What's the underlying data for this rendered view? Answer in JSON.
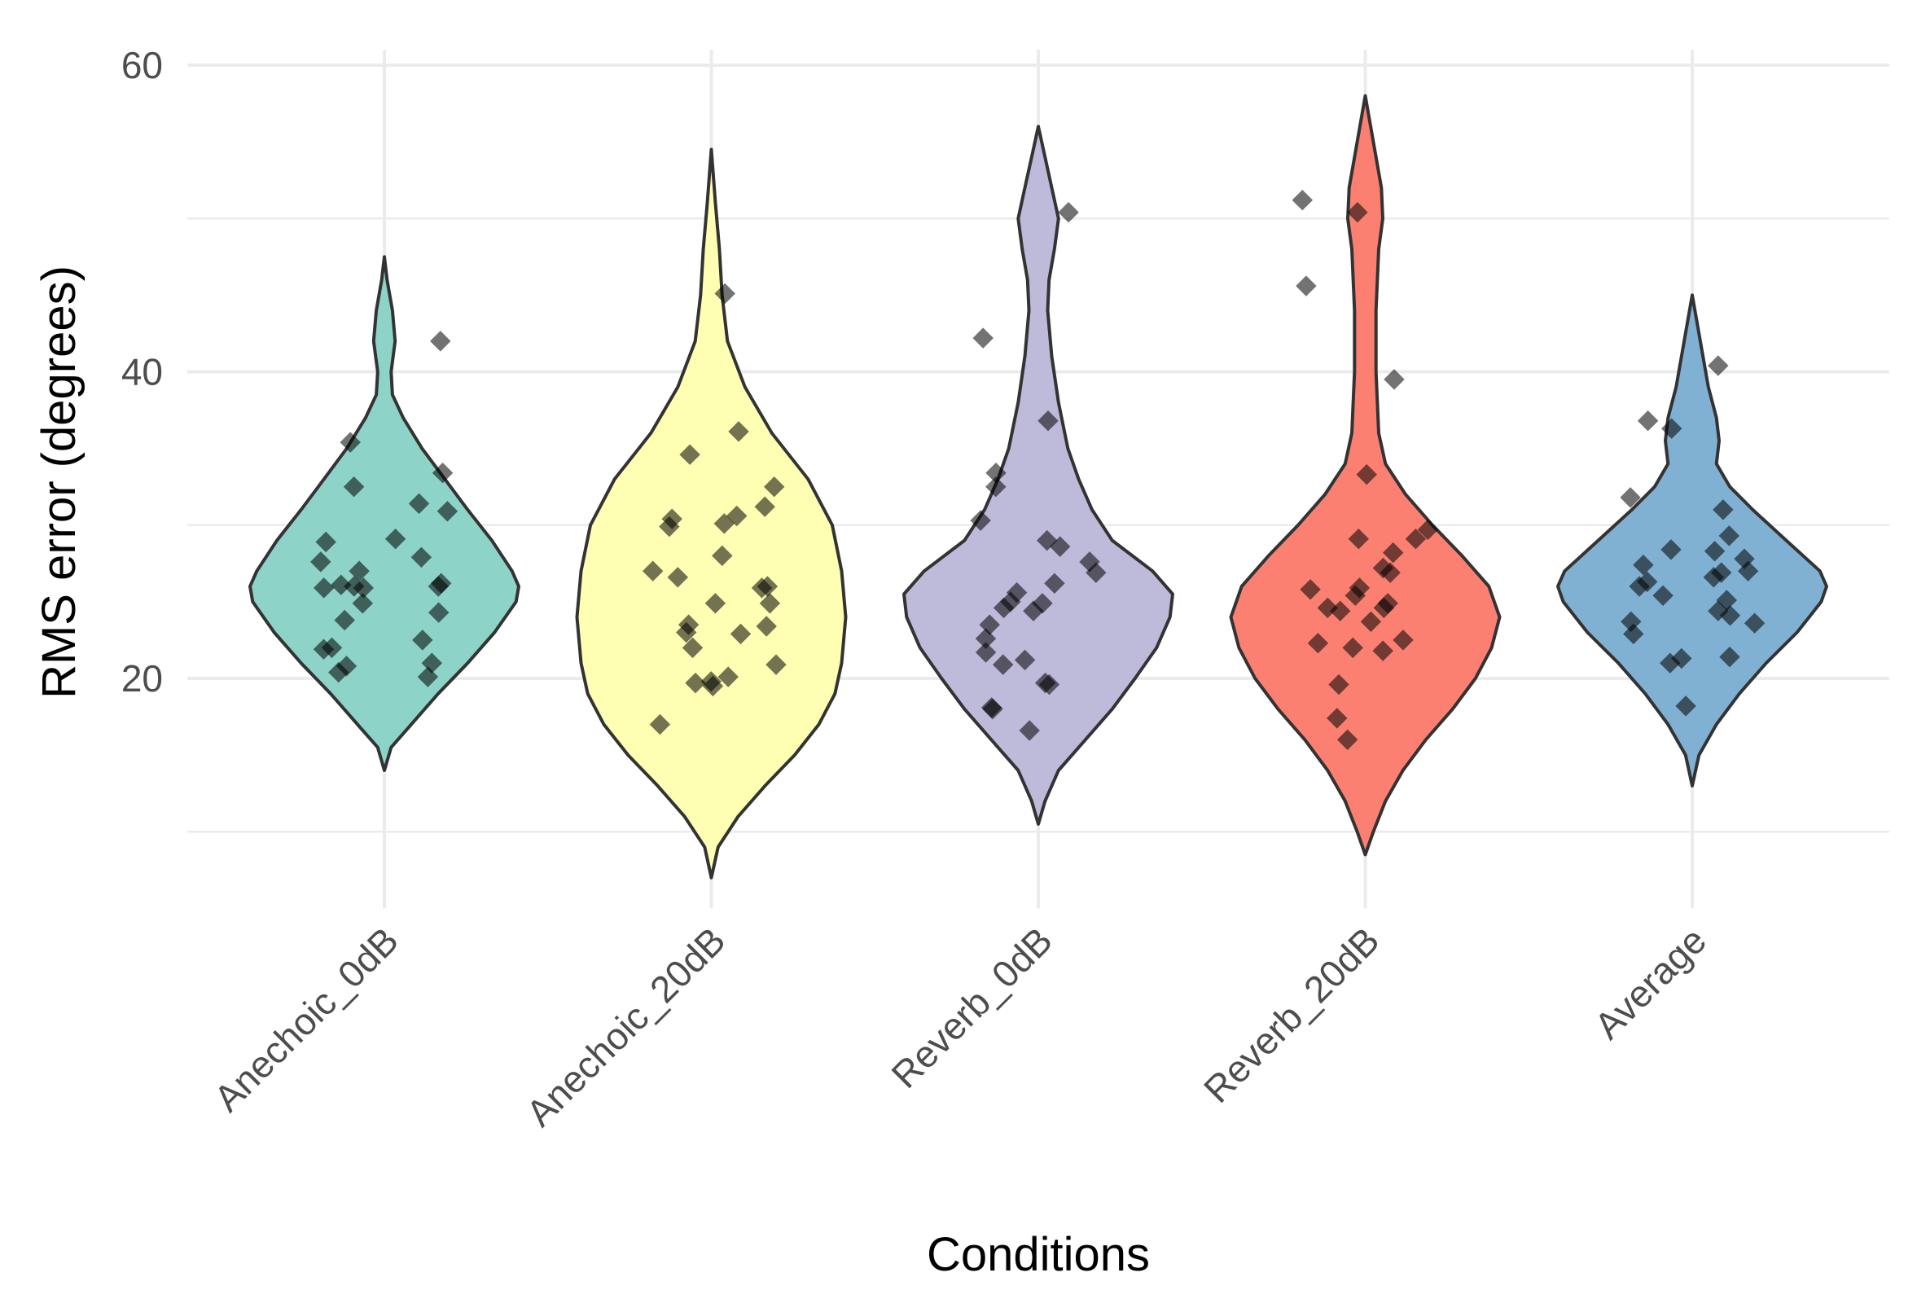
{
  "chart_data": {
    "type": "violin",
    "title": "",
    "xlabel": "Conditions",
    "ylabel": "RMS error (degrees)",
    "ylim": [
      5,
      61
    ],
    "yticks": [
      20,
      40,
      60
    ],
    "categories": [
      "Anechoic_0dB",
      "Anechoic_20dB",
      "Reverb_0dB",
      "Reverb_20dB",
      "Average"
    ],
    "colors": [
      "#8dd3c7",
      "#ffffb3",
      "#bebada",
      "#fb8072",
      "#80b1d3"
    ],
    "grid": true,
    "legend": "none",
    "series": [
      {
        "name": "Anechoic_0dB",
        "range": [
          14.0,
          47.5
        ],
        "density": [
          [
            14.0,
            0.0
          ],
          [
            15.5,
            0.05
          ],
          [
            17,
            0.2
          ],
          [
            19,
            0.4
          ],
          [
            21,
            0.62
          ],
          [
            23,
            0.82
          ],
          [
            25,
            0.98
          ],
          [
            26,
            1.0
          ],
          [
            27,
            0.95
          ],
          [
            29,
            0.8
          ],
          [
            31,
            0.62
          ],
          [
            33,
            0.45
          ],
          [
            35,
            0.28
          ],
          [
            37,
            0.14
          ],
          [
            38.5,
            0.06
          ],
          [
            40,
            0.05
          ],
          [
            42,
            0.08
          ],
          [
            44,
            0.06
          ],
          [
            46,
            0.02
          ],
          [
            47.5,
            0.0
          ]
        ],
        "points": [
          22.0,
          20.1,
          33.4,
          25.9,
          27.6,
          28.9,
          31.4,
          29.1,
          26.0,
          27.9,
          24.9,
          23.8,
          26.0,
          22.5,
          30.9,
          20.4,
          25.9,
          21.9,
          32.5,
          26.1,
          21.0,
          20.8,
          24.3,
          35.4,
          42.0,
          26.2,
          27.0
        ]
      },
      {
        "name": "Anechoic_20dB",
        "range": [
          7.0,
          54.5
        ],
        "density": [
          [
            7.0,
            0.0
          ],
          [
            9,
            0.05
          ],
          [
            11,
            0.2
          ],
          [
            13,
            0.4
          ],
          [
            15,
            0.62
          ],
          [
            17,
            0.8
          ],
          [
            19,
            0.92
          ],
          [
            21,
            0.97
          ],
          [
            24,
            1.0
          ],
          [
            27,
            0.97
          ],
          [
            30,
            0.9
          ],
          [
            33,
            0.72
          ],
          [
            36,
            0.45
          ],
          [
            39,
            0.25
          ],
          [
            42,
            0.12
          ],
          [
            45,
            0.08
          ],
          [
            48,
            0.06
          ],
          [
            51,
            0.03
          ],
          [
            54.5,
            0.0
          ]
        ],
        "points": [
          20.1,
          19.5,
          30.4,
          31.2,
          34.6,
          32.5,
          24.9,
          26.0,
          27.0,
          23.4,
          25.9,
          22.0,
          17.0,
          30.6,
          28.0,
          26.6,
          29.9,
          20.9,
          23.0,
          24.9,
          36.1,
          45.1,
          19.8,
          19.7,
          30.1,
          23.5,
          22.9
        ]
      },
      {
        "name": "Reverb_0dB",
        "range": [
          10.5,
          56.0
        ],
        "density": [
          [
            10.5,
            0.0
          ],
          [
            12,
            0.05
          ],
          [
            14,
            0.15
          ],
          [
            16,
            0.35
          ],
          [
            18,
            0.55
          ],
          [
            20,
            0.72
          ],
          [
            22,
            0.88
          ],
          [
            24,
            0.98
          ],
          [
            25.5,
            1.0
          ],
          [
            27,
            0.85
          ],
          [
            29,
            0.55
          ],
          [
            31,
            0.4
          ],
          [
            33,
            0.3
          ],
          [
            35,
            0.22
          ],
          [
            38,
            0.15
          ],
          [
            41,
            0.1
          ],
          [
            44,
            0.07
          ],
          [
            46,
            0.08
          ],
          [
            48,
            0.12
          ],
          [
            50,
            0.15
          ],
          [
            52,
            0.1
          ],
          [
            54,
            0.05
          ],
          [
            56.0,
            0.0
          ]
        ],
        "points": [
          23.5,
          24.9,
          30.3,
          29.0,
          32.5,
          28.6,
          26.9,
          25.6,
          26.2,
          24.4,
          22.6,
          18.1,
          19.7,
          21.7,
          18.0,
          16.6,
          20.9,
          24.6,
          36.8,
          42.2,
          50.4,
          19.6,
          21.2,
          25.0,
          27.6,
          33.4
        ]
      },
      {
        "name": "Reverb_20dB",
        "range": [
          8.5,
          58.0
        ],
        "density": [
          [
            8.5,
            0.0
          ],
          [
            10,
            0.06
          ],
          [
            12,
            0.15
          ],
          [
            14,
            0.28
          ],
          [
            16,
            0.45
          ],
          [
            18,
            0.65
          ],
          [
            20,
            0.82
          ],
          [
            22,
            0.94
          ],
          [
            24,
            1.0
          ],
          [
            26,
            0.92
          ],
          [
            28,
            0.72
          ],
          [
            30,
            0.5
          ],
          [
            32,
            0.3
          ],
          [
            34,
            0.15
          ],
          [
            36,
            0.1
          ],
          [
            40,
            0.08
          ],
          [
            44,
            0.08
          ],
          [
            48,
            0.1
          ],
          [
            50,
            0.13
          ],
          [
            52,
            0.12
          ],
          [
            55,
            0.06
          ],
          [
            58.0,
            0.0
          ]
        ],
        "points": [
          22.0,
          21.8,
          29.1,
          29.7,
          33.3,
          28.2,
          26.9,
          24.6,
          24.4,
          25.4,
          22.5,
          23.7,
          17.4,
          16.0,
          19.6,
          24.6,
          22.3,
          29.1,
          39.5,
          45.6,
          51.2,
          50.4,
          27.2,
          25.9,
          24.9,
          25.8
        ]
      },
      {
        "name": "Average",
        "range": [
          13.0,
          45.0
        ],
        "density": [
          [
            13.0,
            0.0
          ],
          [
            15,
            0.05
          ],
          [
            17,
            0.18
          ],
          [
            19,
            0.35
          ],
          [
            21,
            0.55
          ],
          [
            23,
            0.78
          ],
          [
            25,
            0.96
          ],
          [
            26,
            1.0
          ],
          [
            27,
            0.95
          ],
          [
            29,
            0.7
          ],
          [
            31,
            0.45
          ],
          [
            32.5,
            0.28
          ],
          [
            34,
            0.18
          ],
          [
            35.5,
            0.2
          ],
          [
            37,
            0.18
          ],
          [
            39,
            0.12
          ],
          [
            41,
            0.08
          ],
          [
            43,
            0.04
          ],
          [
            45.0,
            0.0
          ]
        ],
        "points": [
          24.4,
          22.9,
          29.3,
          31.0,
          27.0,
          28.3,
          28.4,
          26.3,
          25.1,
          23.6,
          21.0,
          21.3,
          26.0,
          27.4,
          25.4,
          24.1,
          23.7,
          18.2,
          21.4,
          26.9,
          36.3,
          40.4,
          36.8,
          31.8,
          27.8,
          26.6
        ]
      }
    ]
  }
}
